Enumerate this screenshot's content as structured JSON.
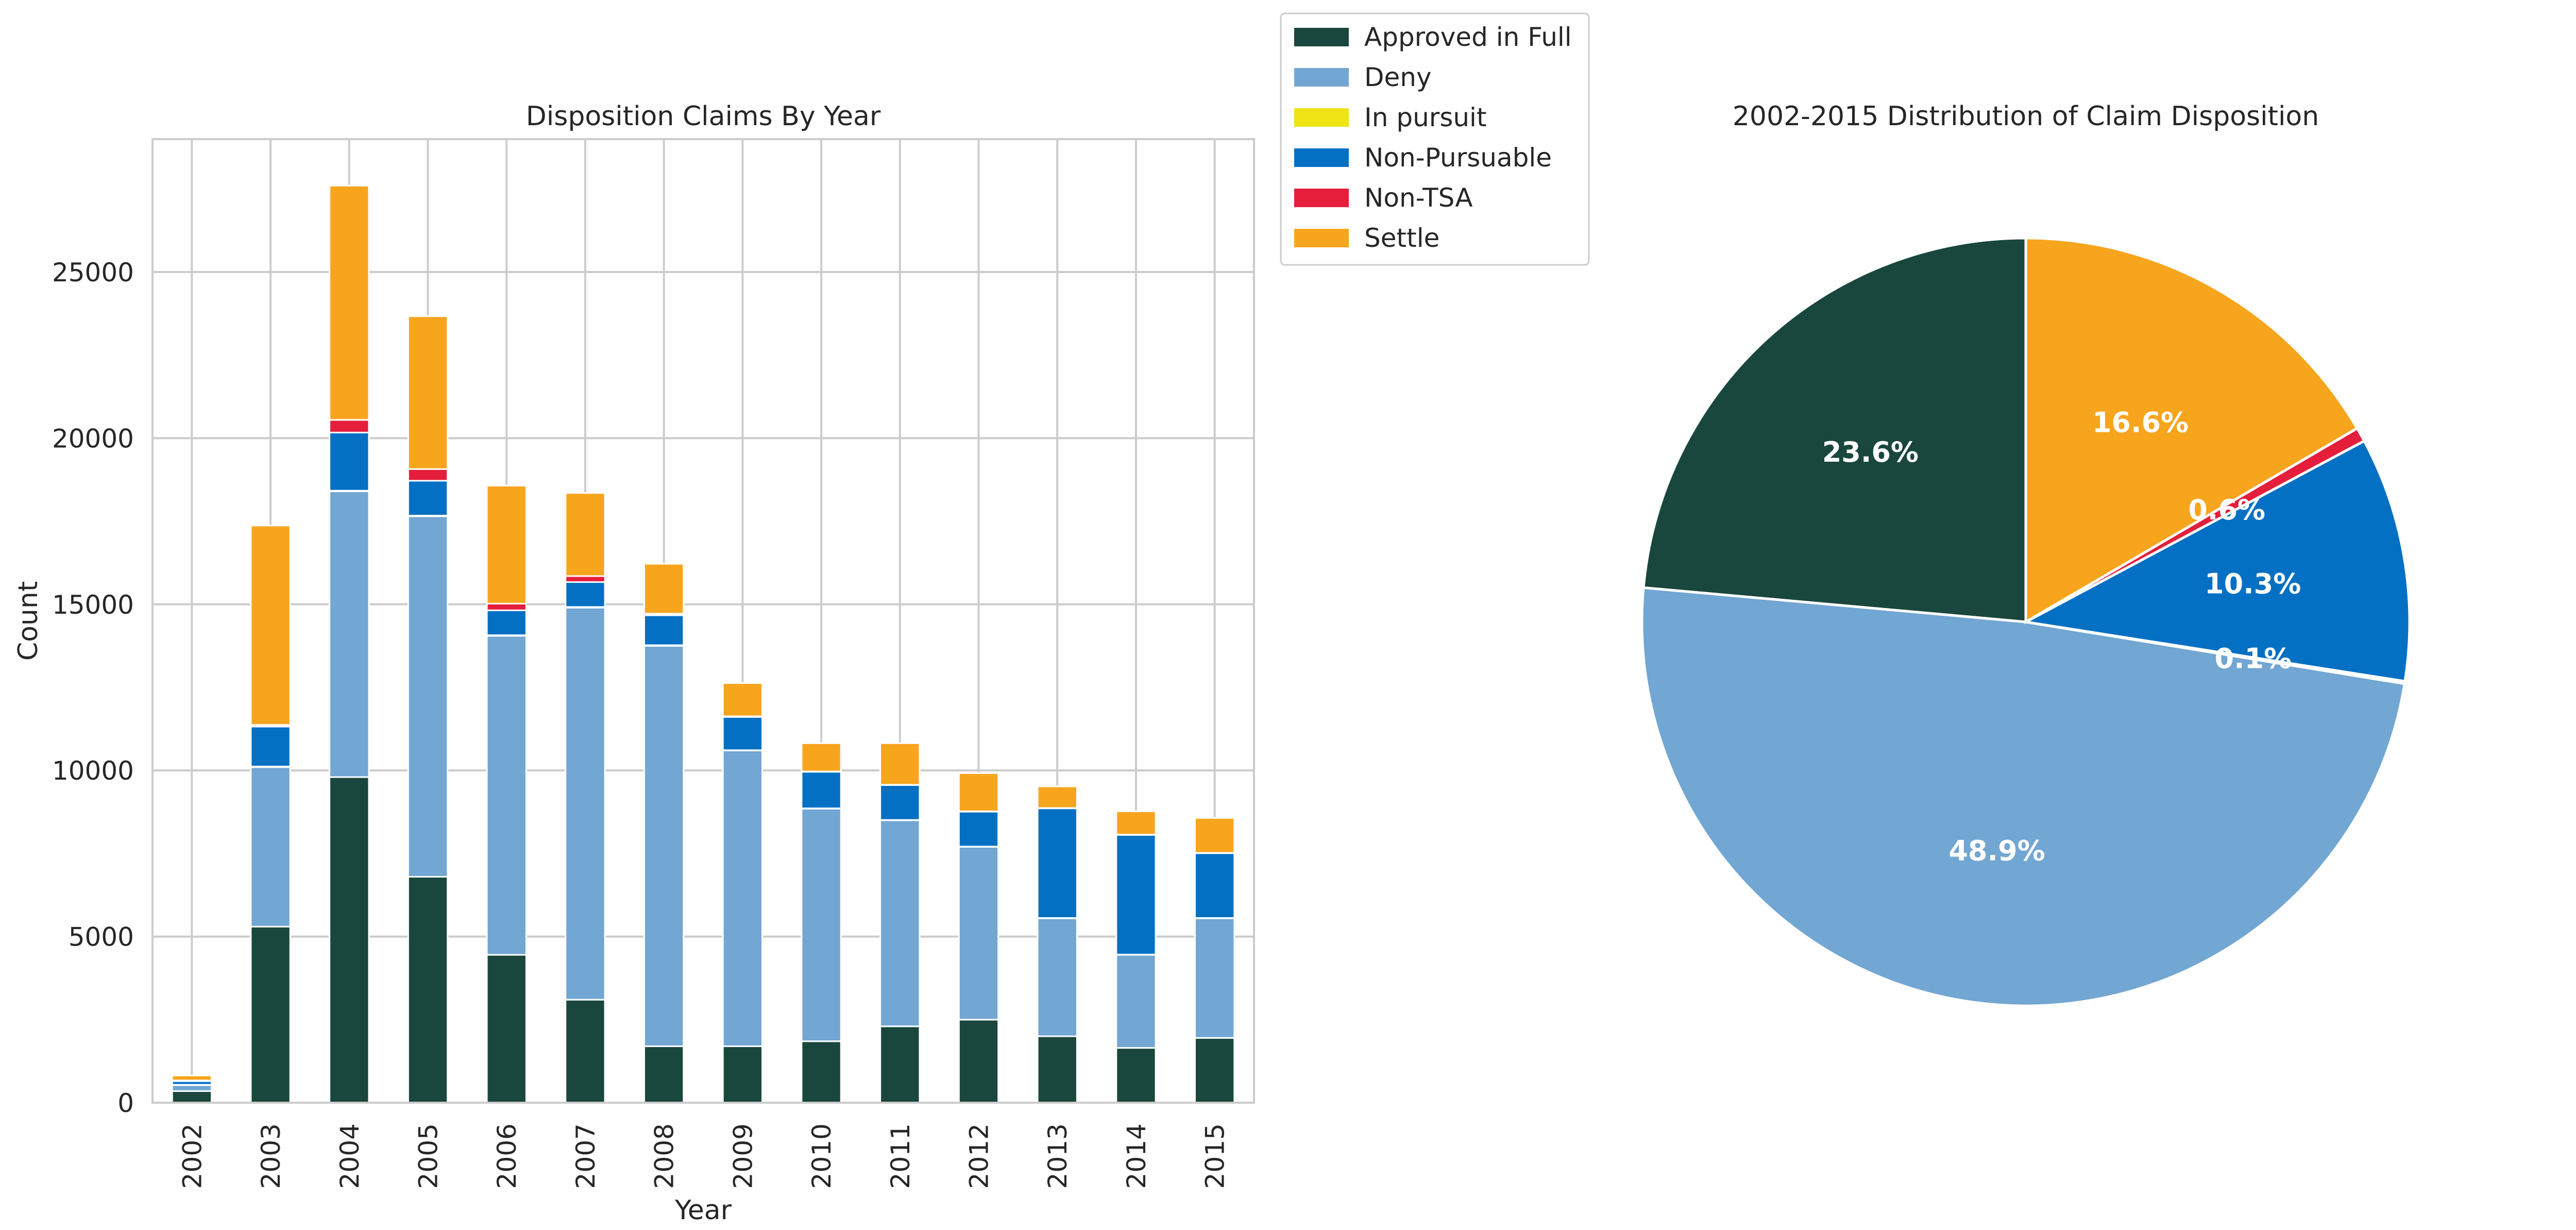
{
  "colors": {
    "series": [
      "#1a473d",
      "#72a6d3",
      "#eee416",
      "#0470c4",
      "#e41e3b",
      "#f8a51e"
    ],
    "grid": "#cccccc",
    "axis_text": "#262626",
    "pie_label": "#ffffff"
  },
  "chart_data": [
    {
      "type": "bar",
      "stacked": true,
      "title": "Disposition Claims By Year",
      "xlabel": "Year",
      "ylabel": "Count",
      "ylim": [
        0,
        29000
      ],
      "yticks": [
        0,
        5000,
        10000,
        15000,
        20000,
        25000
      ],
      "grid": true,
      "categories": [
        "2002",
        "2003",
        "2004",
        "2005",
        "2006",
        "2007",
        "2008",
        "2009",
        "2010",
        "2011",
        "2012",
        "2013",
        "2014",
        "2015"
      ],
      "series": [
        {
          "name": "Approved in Full",
          "values": [
            350,
            5300,
            9800,
            6800,
            4450,
            3100,
            1700,
            1700,
            1850,
            2300,
            2500,
            2000,
            1650,
            1950
          ]
        },
        {
          "name": "Deny",
          "values": [
            180,
            4800,
            8600,
            10850,
            9600,
            11800,
            12050,
            8900,
            7000,
            6200,
            5200,
            3550,
            2800,
            3600
          ]
        },
        {
          "name": "In pursuit",
          "values": [
            10,
            20,
            20,
            20,
            20,
            20,
            20,
            10,
            10,
            10,
            10,
            10,
            10,
            10
          ]
        },
        {
          "name": "Non-Pursuable",
          "values": [
            110,
            1200,
            1750,
            1050,
            750,
            750,
            900,
            1000,
            1100,
            1050,
            1050,
            3300,
            3600,
            1950
          ]
        },
        {
          "name": "Non-TSA",
          "values": [
            20,
            50,
            380,
            350,
            200,
            180,
            50,
            20,
            10,
            10,
            10,
            10,
            10,
            10
          ]
        },
        {
          "name": "Settle",
          "values": [
            150,
            6000,
            7050,
            4600,
            3550,
            2500,
            1500,
            1000,
            850,
            1250,
            1150,
            650,
            700,
            1050
          ]
        }
      ],
      "legend": {
        "placement": "top-right outside",
        "entries": [
          "Approved in Full",
          "Deny",
          "In pursuit",
          "Non-Pursuable",
          "Non-TSA",
          "Settle"
        ]
      }
    },
    {
      "type": "pie",
      "title": "2002-2015 Distribution of Claim Disposition",
      "labels": [
        "Approved in Full",
        "Deny",
        "In pursuit",
        "Non-Pursuable",
        "Non-TSA",
        "Settle"
      ],
      "values": [
        23.6,
        48.9,
        0.1,
        10.3,
        0.6,
        16.6
      ],
      "value_labels": [
        "23.6%",
        "48.9%",
        "0.1%",
        "10.3%",
        "0.6%",
        "16.6%"
      ],
      "start_angle": 90,
      "direction": "counterclockwise"
    }
  ]
}
